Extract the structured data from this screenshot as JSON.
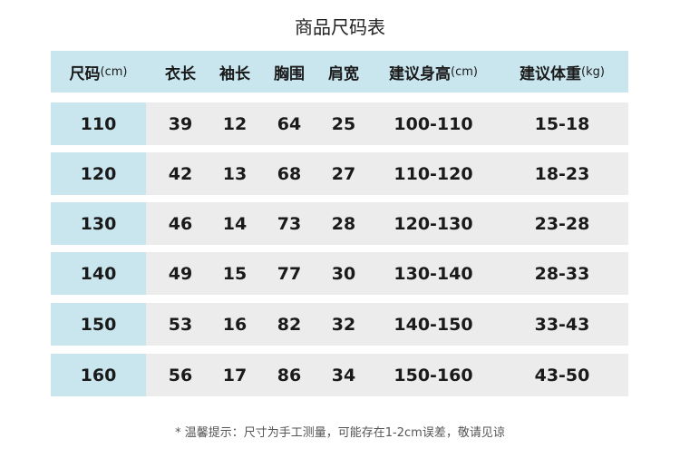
{
  "title": "商品尺码表",
  "headers": [
    {
      "label": "尺码",
      "unit": "(cm)"
    },
    {
      "label": "衣长",
      "unit": ""
    },
    {
      "label": "袖长",
      "unit": ""
    },
    {
      "label": "胸围",
      "unit": ""
    },
    {
      "label": "肩宽",
      "unit": ""
    },
    {
      "label": "建议身高",
      "unit": "(cm)"
    },
    {
      "label": "建议体重",
      "unit": "(kg)"
    }
  ],
  "rows": [
    [
      "110",
      "39",
      "12",
      "64",
      "25",
      "100-110",
      "15-18"
    ],
    [
      "120",
      "42",
      "13",
      "68",
      "27",
      "110-120",
      "18-23"
    ],
    [
      "130",
      "46",
      "14",
      "73",
      "28",
      "120-130",
      "23-28"
    ],
    [
      "140",
      "49",
      "15",
      "77",
      "30",
      "130-140",
      "28-33"
    ],
    [
      "150",
      "53",
      "16",
      "82",
      "32",
      "140-150",
      "33-43"
    ],
    [
      "160",
      "56",
      "17",
      "86",
      "34",
      "150-160",
      "43-50"
    ]
  ],
  "note": "* 温馨提示：尺寸为手工测量，可能存在1-2cm误差，敬请见谅",
  "colors": {
    "header_bg": "#c9e6ef",
    "row_bg": "#ececec"
  }
}
